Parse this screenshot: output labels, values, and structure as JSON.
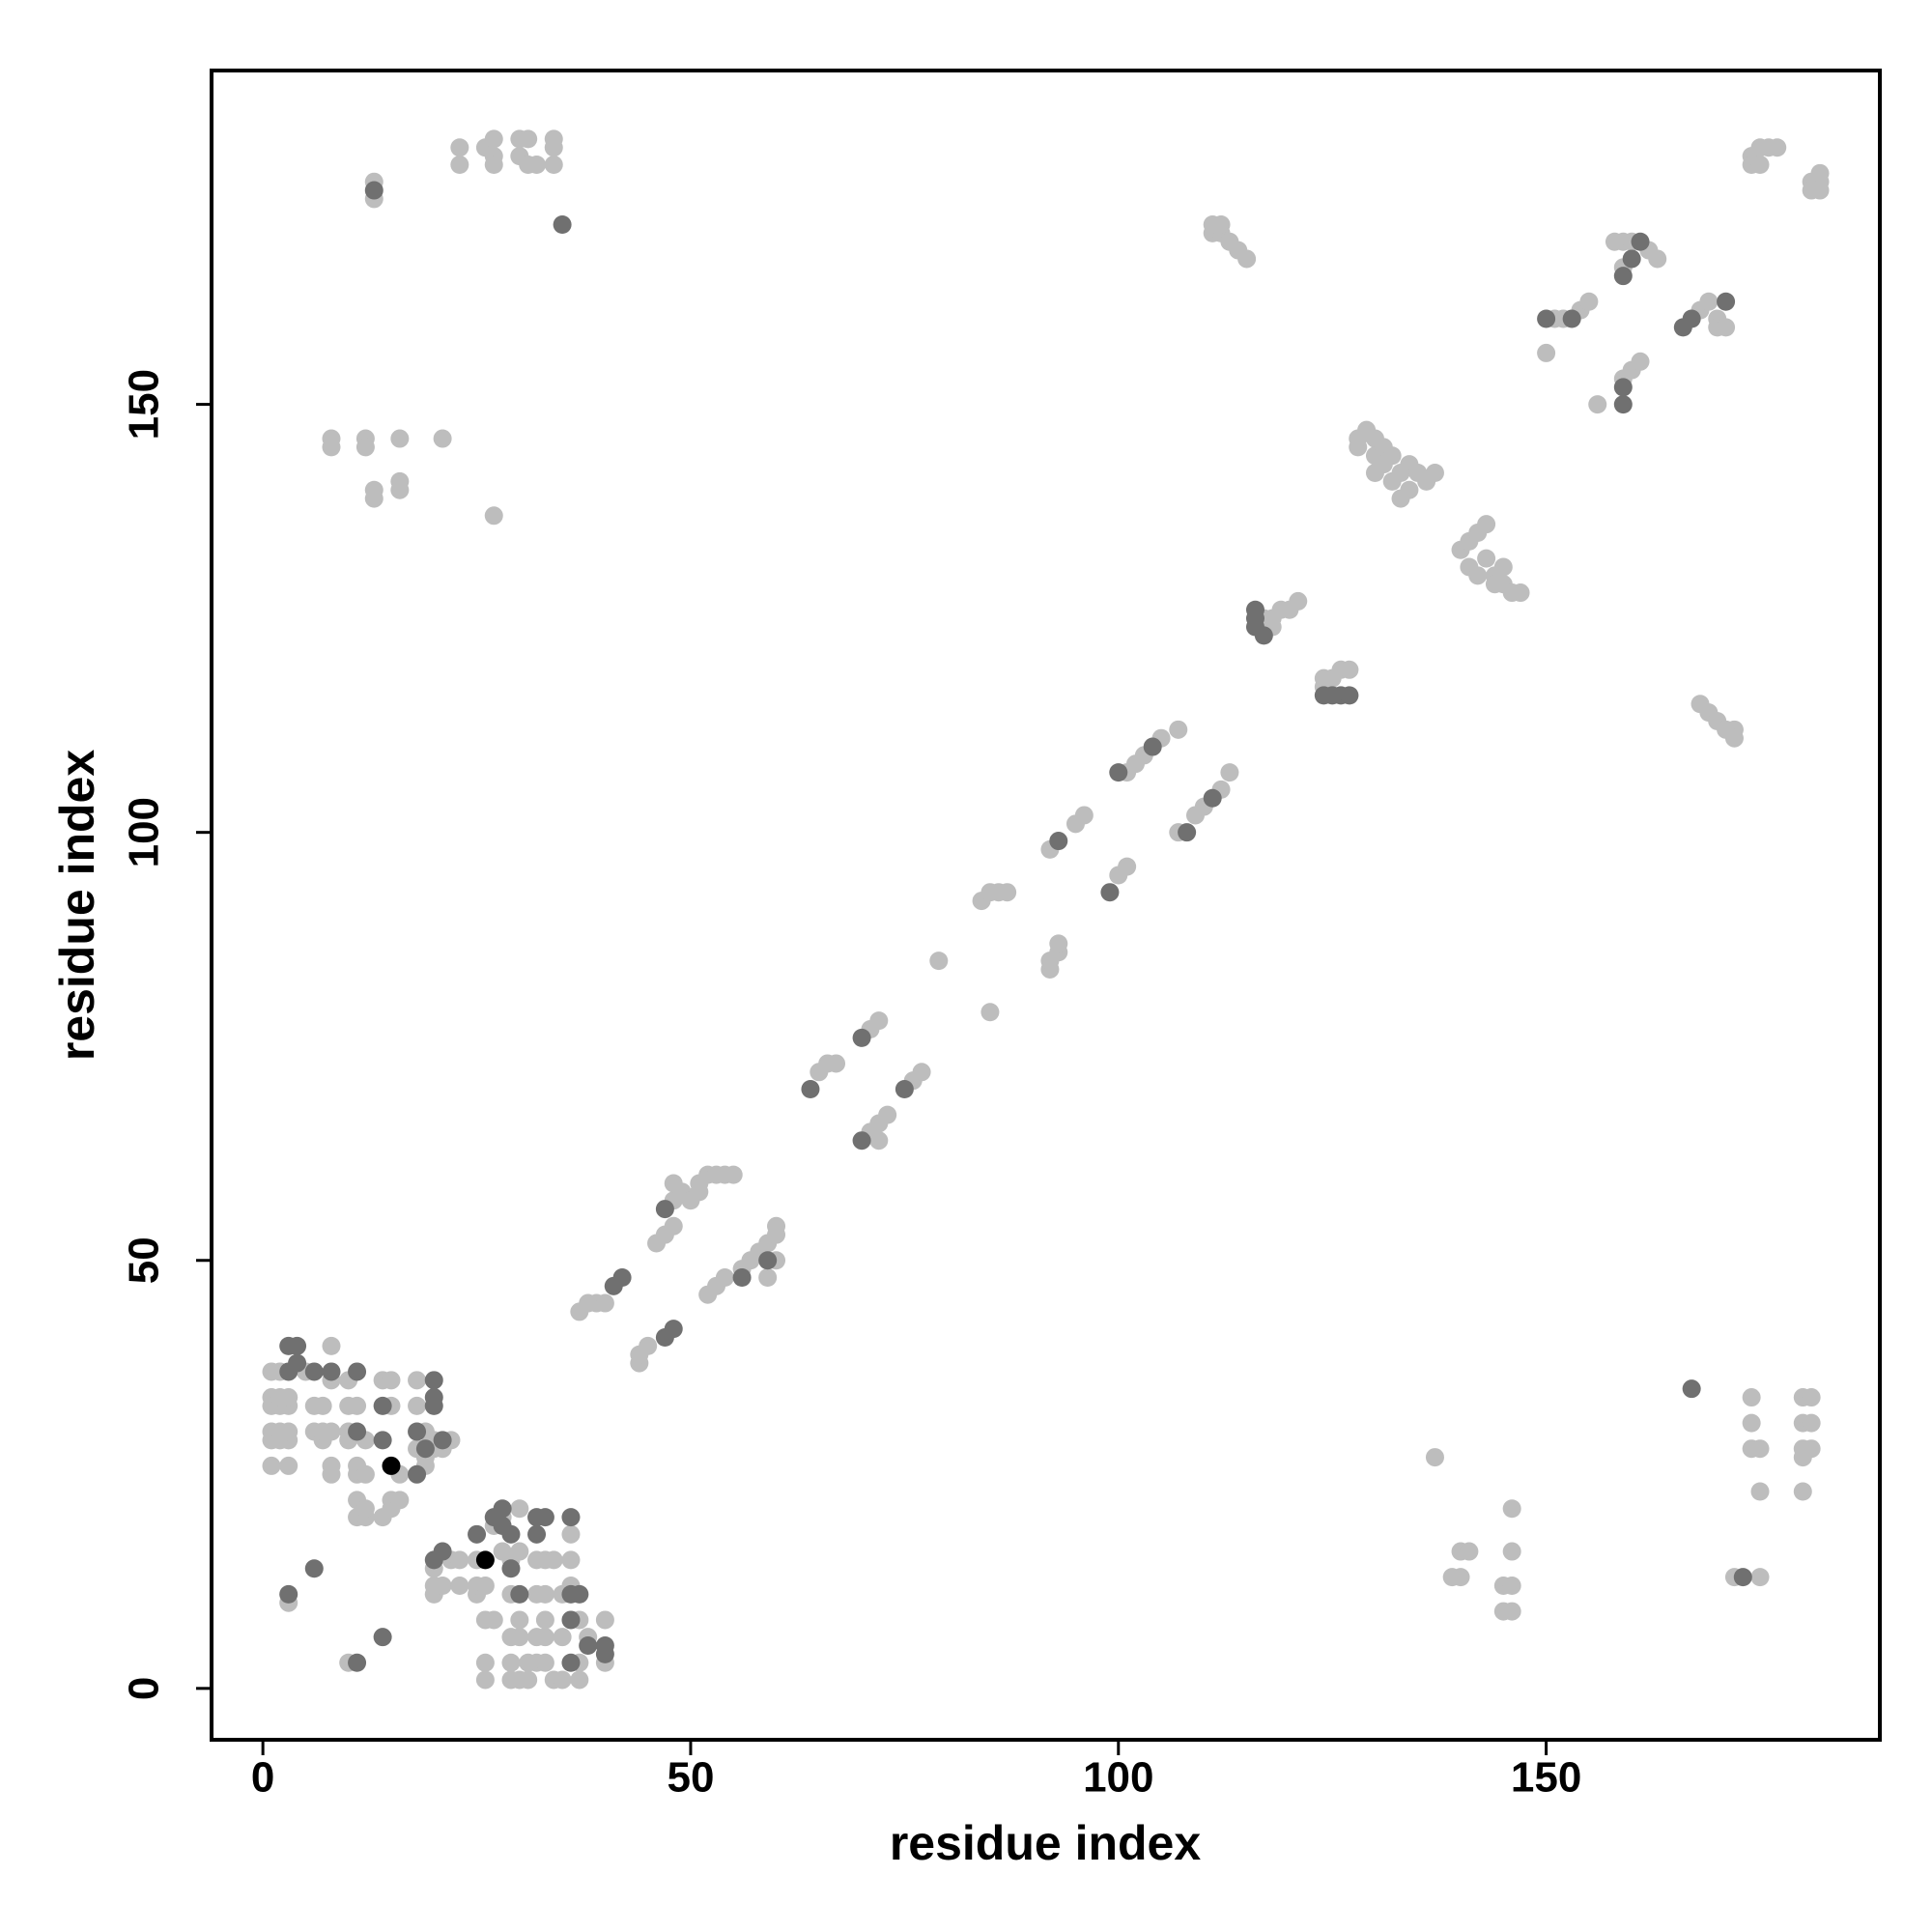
{
  "chart_data": {
    "type": "scatter",
    "x_label": "residue index",
    "y_label": "residue index",
    "xlim": [
      -6,
      189
    ],
    "ylim": [
      -6,
      189
    ],
    "xticks": [
      0,
      50,
      100,
      150
    ],
    "yticks": [
      0,
      50,
      100,
      150
    ],
    "grid": false,
    "series": [
      {
        "color": "#bdbdbd",
        "x": [
          1,
          1,
          1,
          1,
          1,
          1,
          2,
          2,
          2,
          2,
          2,
          3,
          3,
          3,
          3,
          3,
          5,
          6,
          6,
          7,
          7,
          7,
          8,
          8,
          8,
          8,
          8,
          10,
          10,
          10,
          10,
          11,
          11,
          11,
          11,
          11,
          12,
          12,
          12,
          12,
          14,
          14,
          15,
          15,
          15,
          15,
          16,
          16,
          18,
          18,
          18,
          19,
          19,
          19,
          20,
          20,
          21,
          22,
          20,
          20,
          20,
          21,
          22,
          23,
          23,
          25,
          25,
          25,
          26,
          26,
          26,
          26,
          27,
          27,
          28,
          28,
          29,
          29,
          29,
          29,
          29,
          30,
          30,
          30,
          30,
          30,
          31,
          31,
          32,
          32,
          32,
          32,
          33,
          33,
          33,
          33,
          33,
          34,
          34,
          35,
          35,
          35,
          36,
          36,
          36,
          37,
          37,
          37,
          38,
          40,
          40,
          3,
          10,
          37,
          38,
          39,
          40,
          44,
          44,
          45,
          46,
          47,
          48,
          48,
          48,
          49,
          50,
          51,
          51,
          52,
          53,
          54,
          55,
          52,
          53,
          54,
          56,
          57,
          58,
          59,
          59,
          60,
          60,
          60,
          65,
          66,
          67,
          71,
          72,
          73,
          72,
          71,
          72,
          76,
          77,
          79,
          85,
          84,
          85,
          86,
          87,
          92,
          92,
          93,
          93,
          92,
          95,
          96,
          100,
          101,
          101,
          102,
          103,
          105,
          107,
          107,
          109,
          110,
          112,
          113,
          117,
          117,
          118,
          118,
          119,
          120,
          121,
          124,
          125,
          126,
          127,
          124,
          128,
          128,
          129,
          130,
          130,
          131,
          131,
          132,
          133,
          134,
          135,
          136,
          137,
          133,
          134,
          130,
          132,
          140,
          141,
          142,
          143,
          141,
          142,
          143,
          144,
          145,
          146,
          147,
          144,
          145,
          111,
          112,
          113,
          114,
          115,
          111,
          112,
          150,
          151,
          152,
          154,
          155,
          156,
          159,
          160,
          161,
          158,
          159,
          160,
          159,
          162,
          163,
          168,
          169,
          170,
          170,
          171,
          168,
          169,
          170,
          171,
          172,
          172,
          174,
          175,
          176,
          177,
          174,
          175,
          181,
          182,
          182,
          181,
          182,
          13,
          13,
          23,
          23,
          26,
          27,
          27,
          27,
          30,
          31,
          30,
          31,
          32,
          34,
          34,
          34,
          8,
          8,
          12,
          12,
          13,
          13,
          16,
          16,
          16,
          21,
          27,
          137,
          140,
          141,
          139,
          140,
          145,
          145,
          146,
          146,
          146,
          146,
          174,
          174,
          174,
          175,
          175,
          172,
          175,
          180,
          181,
          180,
          181,
          180,
          181,
          180,
          180
        ],
        "values": [
          26,
          29,
          30,
          33,
          34,
          37,
          29,
          30,
          33,
          34,
          37,
          26,
          29,
          30,
          33,
          34,
          37,
          30,
          33,
          29,
          30,
          33,
          25,
          26,
          30,
          36,
          40,
          29,
          30,
          33,
          36,
          20,
          22,
          25,
          26,
          33,
          20,
          21,
          25,
          29,
          20,
          36,
          21,
          22,
          33,
          36,
          22,
          25,
          28,
          33,
          36,
          26,
          27,
          30,
          28,
          29,
          28,
          29,
          11,
          12,
          14,
          12,
          15,
          12,
          15,
          11,
          12,
          15,
          8,
          3,
          1,
          12,
          8,
          19,
          20,
          16,
          15,
          11,
          6,
          3,
          1,
          21,
          16,
          8,
          6,
          1,
          3,
          1,
          15,
          11,
          6,
          3,
          15,
          11,
          8,
          6,
          3,
          1,
          15,
          11,
          6,
          1,
          12,
          15,
          18,
          1,
          8,
          3,
          6,
          8,
          3,
          10,
          3,
          44,
          45,
          45,
          45,
          38,
          39,
          40,
          52,
          53,
          54,
          57,
          59,
          58,
          57,
          58,
          59,
          60,
          60,
          60,
          60,
          46,
          47,
          48,
          49,
          50,
          51,
          52,
          48,
          53,
          54,
          50,
          72,
          73,
          73,
          65,
          66,
          67,
          64,
          77,
          78,
          71,
          72,
          85,
          79,
          92,
          93,
          93,
          93,
          84,
          85,
          86,
          87,
          98,
          101,
          102,
          95,
          96,
          107,
          108,
          109,
          111,
          112,
          100,
          102,
          103,
          105,
          107,
          124,
          125,
          124,
          125,
          126,
          126,
          127,
          117,
          118,
          119,
          119,
          118,
          145,
          146,
          147,
          146,
          144,
          145,
          143,
          144,
          142,
          143,
          142,
          141,
          142,
          139,
          140,
          142,
          141,
          133,
          134,
          135,
          136,
          131,
          130,
          132,
          130,
          129,
          128,
          128,
          129,
          131,
          170,
          170,
          169,
          168,
          167,
          171,
          171,
          156,
          160,
          160,
          161,
          162,
          150,
          153,
          154,
          155,
          169,
          169,
          169,
          166,
          168,
          167,
          161,
          162,
          160,
          159,
          159,
          115,
          114,
          113,
          112,
          112,
          111,
          179,
          180,
          180,
          180,
          178,
          178,
          176,
          176,
          177,
          175,
          175,
          176,
          174,
          180,
          178,
          180,
          181,
          179,
          178,
          181,
          181,
          179,
          178,
          178,
          181,
          180,
          178,
          146,
          145,
          146,
          145,
          140,
          139,
          146,
          141,
          140,
          146,
          137,
          27,
          16,
          16,
          13,
          13,
          12,
          9,
          12,
          9,
          16,
          21,
          34,
          31,
          28,
          28,
          23,
          13,
          13,
          34,
          34,
          31,
          31,
          28,
          28,
          27,
          23
        ]
      },
      {
        "color": "#707070",
        "x": [
          3,
          4,
          3,
          4,
          6,
          8,
          11,
          11,
          14,
          14,
          18,
          18,
          20,
          20,
          19,
          20,
          21,
          20,
          21,
          25,
          27,
          28,
          29,
          29,
          28,
          32,
          33,
          32,
          30,
          36,
          36,
          37,
          36,
          36,
          40,
          40,
          38,
          3,
          6,
          11,
          14,
          41,
          42,
          47,
          48,
          47,
          56,
          59,
          64,
          70,
          70,
          75,
          93,
          99,
          100,
          104,
          108,
          111,
          116,
          116,
          116,
          117,
          124,
          125,
          126,
          127,
          150,
          153,
          159,
          159,
          161,
          160,
          159,
          167,
          166,
          171,
          13,
          35,
          167,
          173
        ],
        "values": [
          40,
          40,
          37,
          38,
          37,
          37,
          37,
          30,
          33,
          29,
          25,
          30,
          33,
          34,
          28,
          36,
          29,
          15,
          16,
          18,
          20,
          21,
          18,
          14,
          19,
          20,
          20,
          18,
          11,
          20,
          11,
          11,
          8,
          3,
          4,
          5,
          5,
          11,
          14,
          3,
          6,
          47,
          48,
          41,
          42,
          56,
          48,
          50,
          70,
          64,
          76,
          70,
          99,
          93,
          107,
          110,
          100,
          104,
          124,
          125,
          126,
          123,
          116,
          116,
          116,
          116,
          160,
          160,
          150,
          152,
          169,
          167,
          165,
          160,
          159,
          162,
          175,
          171,
          35,
          13
        ]
      },
      {
        "color": "#000000",
        "x": [
          15,
          26
        ],
        "values": [
          26,
          15
        ]
      }
    ]
  }
}
